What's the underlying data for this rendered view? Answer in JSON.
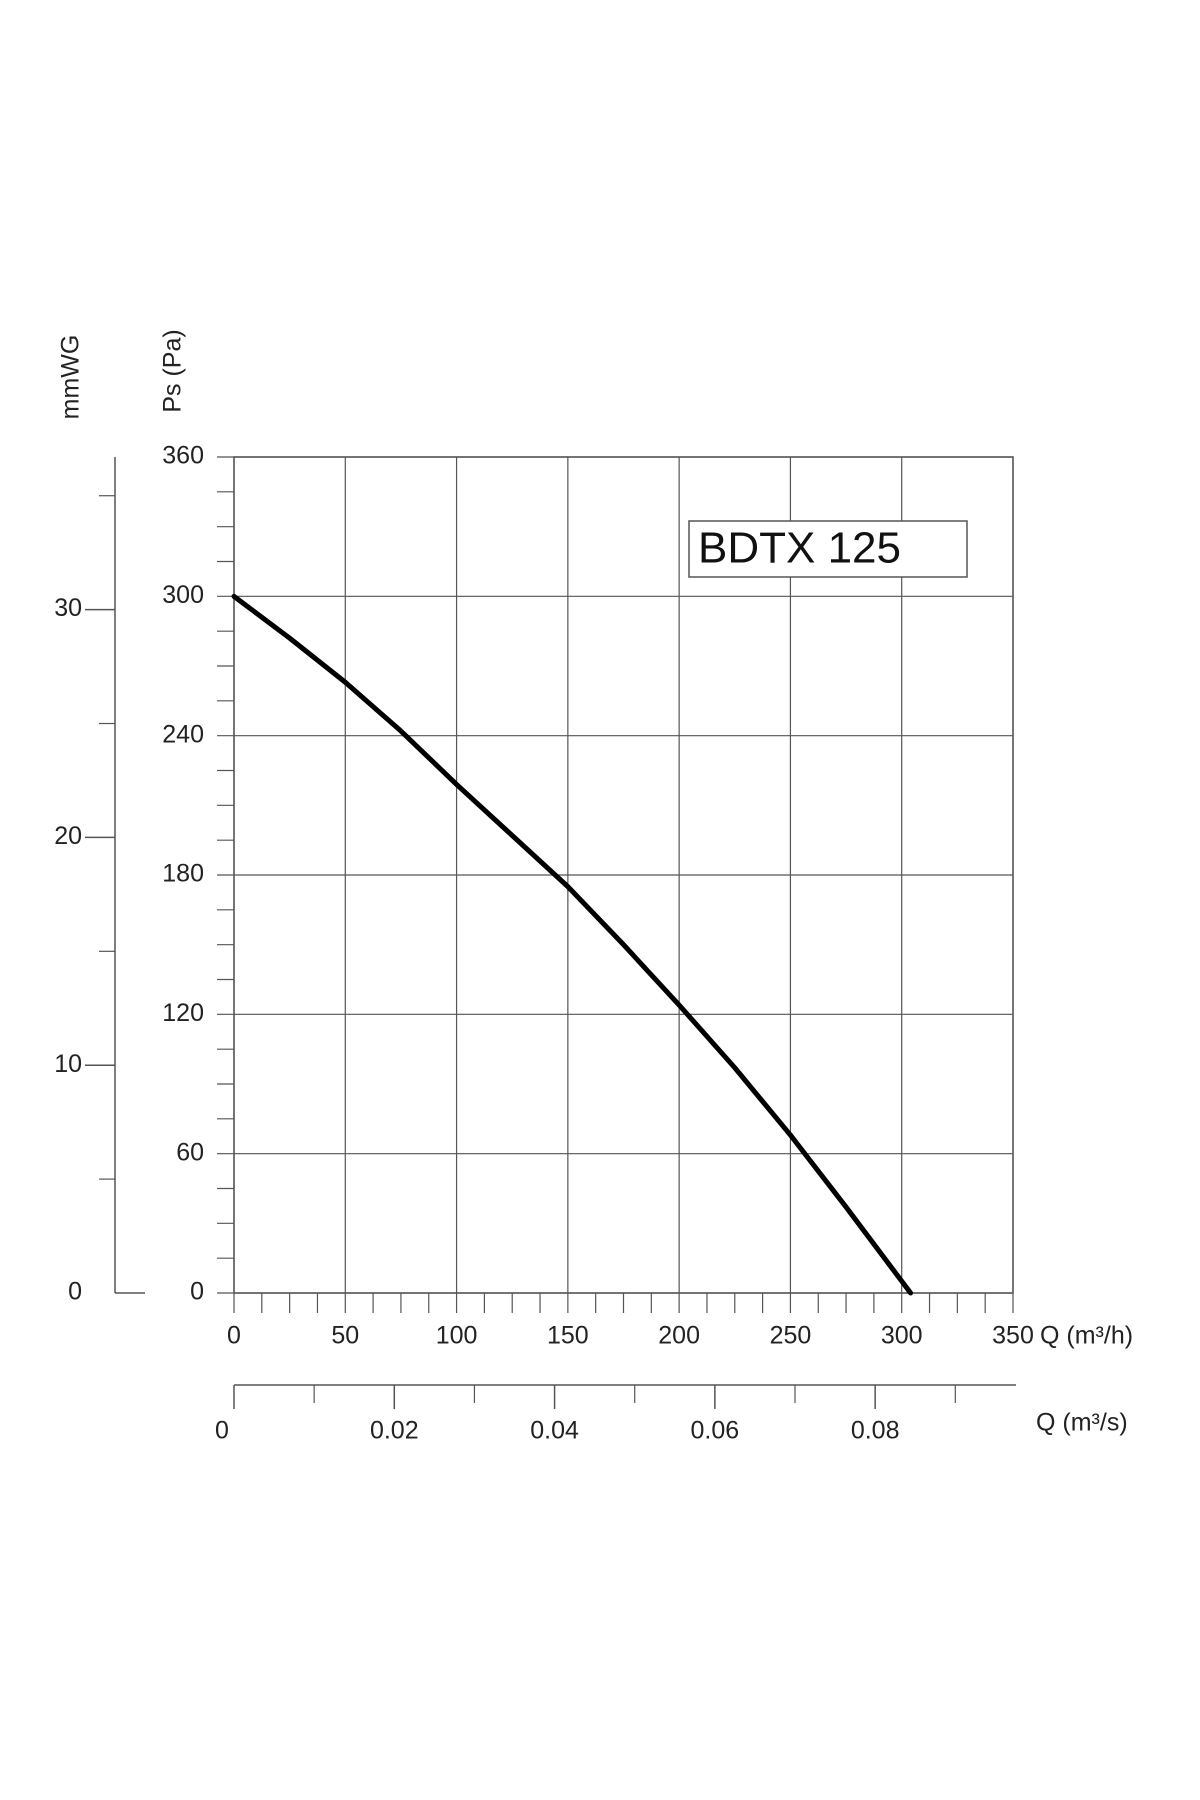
{
  "chart_data": {
    "type": "line",
    "annotation": "BDTX 125",
    "y_label": "Ps (Pa)",
    "y2_label": "mmWG",
    "x_label": "Q (m³/h)",
    "x2_label": "Q (m³/s)",
    "x": [
      0,
      25,
      50,
      75,
      100,
      125,
      150,
      175,
      200,
      225,
      250,
      275,
      304
    ],
    "series": [
      {
        "color": "#000000",
        "values": [
          300,
          282,
          263,
          242,
          219,
          197,
          175,
          150,
          124,
          97,
          68,
          37,
          0
        ]
      }
    ],
    "xlim": [
      0,
      350
    ],
    "xticks": [
      0,
      50,
      100,
      150,
      200,
      250,
      300,
      350
    ],
    "xminor_ticks": [
      12.5,
      25,
      37.5,
      62.5,
      75,
      87.5,
      112.5,
      125,
      137.5,
      162.5,
      175,
      187.5,
      212.5,
      225,
      237.5,
      262.5,
      275,
      287.5,
      312.5,
      325,
      337.5
    ],
    "ylim": [
      0,
      360
    ],
    "yticks": [
      0,
      60,
      120,
      180,
      240,
      300,
      360
    ],
    "yminor_ticks": [
      15,
      30,
      45,
      75,
      90,
      105,
      135,
      150,
      165,
      195,
      210,
      225,
      255,
      270,
      285,
      315,
      330,
      345
    ],
    "y2lim": [
      0,
      36.7
    ],
    "y2ticks": [
      0,
      10,
      20,
      30
    ],
    "y2minor_ticks": [
      5,
      15,
      25,
      35
    ],
    "x2lim": [
      0,
      0.0972
    ],
    "x2ticks": [
      0,
      0.02,
      0.04,
      0.06,
      0.08
    ],
    "x2minor_ticks": [
      0.01,
      0.03,
      0.05,
      0.07,
      0.09
    ],
    "grid": true
  }
}
